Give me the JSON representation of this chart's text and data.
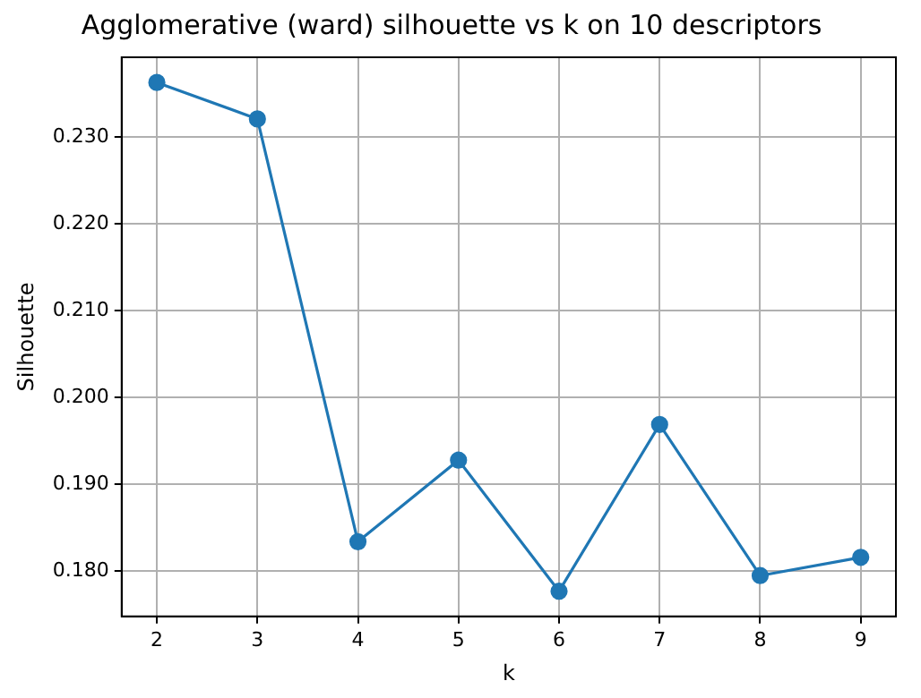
{
  "chart_data": {
    "type": "line",
    "title": "Agglomerative (ward) silhouette vs k on 10 descriptors",
    "xlabel": "k",
    "ylabel": "Silhouette",
    "x": [
      2,
      3,
      4,
      5,
      6,
      7,
      8,
      9
    ],
    "series": [
      {
        "color": "#1f77b4",
        "values": [
          0.2363,
          0.2321,
          0.1834,
          0.1928,
          0.1777,
          0.1969,
          0.1795,
          0.1816
        ]
      }
    ],
    "xlim": [
      1.65,
      9.35
    ],
    "xticks": [
      2,
      3,
      4,
      5,
      6,
      7,
      8,
      9
    ],
    "ylim": [
      0.1748,
      0.2392
    ],
    "yticks": [
      {
        "value": 0.18,
        "label": "0.180"
      },
      {
        "value": 0.19,
        "label": "0.190"
      },
      {
        "value": 0.2,
        "label": "0.200"
      },
      {
        "value": 0.21,
        "label": "0.210"
      },
      {
        "value": 0.22,
        "label": "0.220"
      },
      {
        "value": 0.23,
        "label": "0.230"
      }
    ],
    "grid": true,
    "marker": "circle",
    "line_style": "solid",
    "legend": false
  }
}
